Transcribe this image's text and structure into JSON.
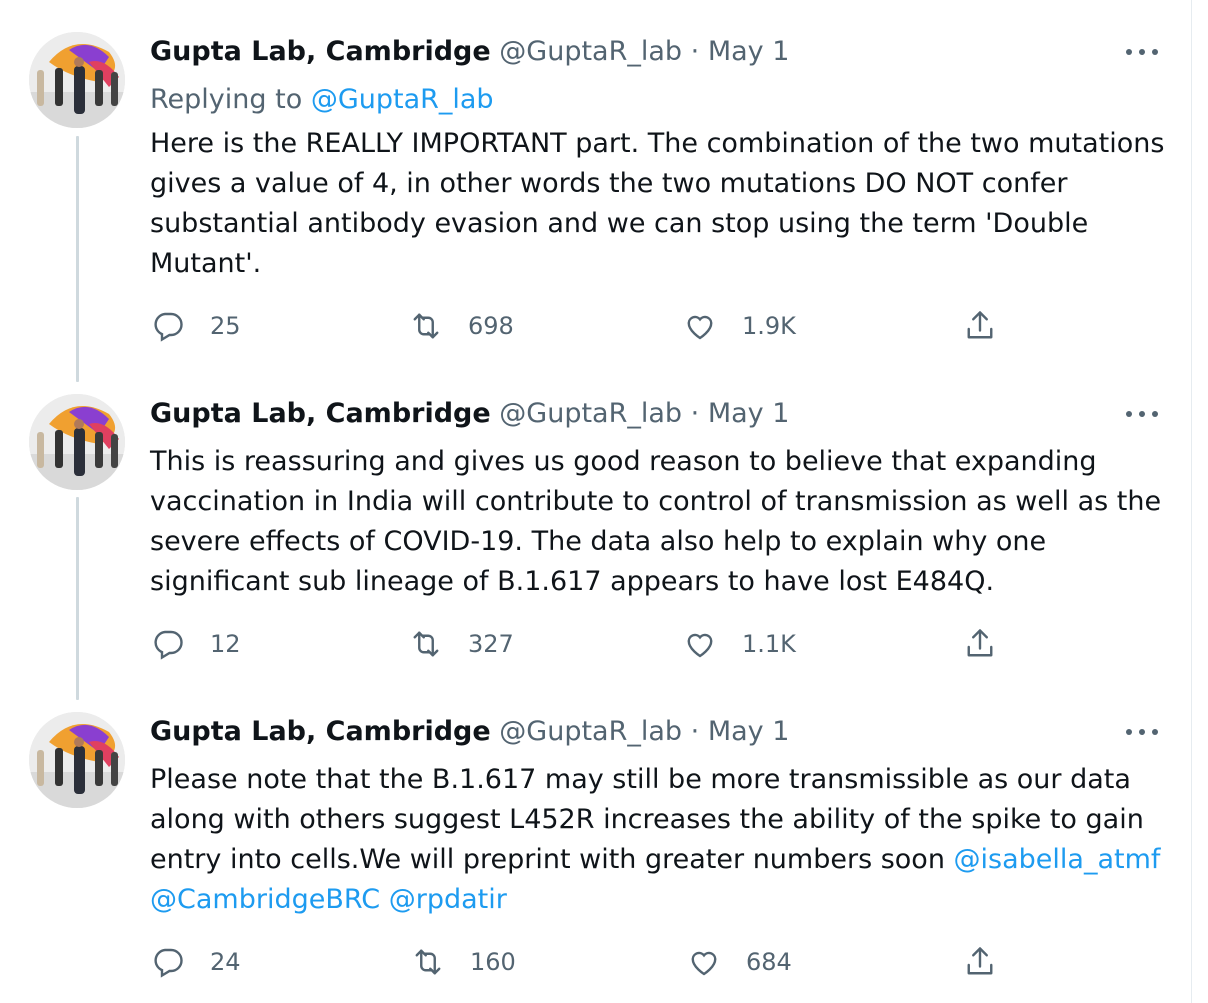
{
  "tweets": [
    {
      "author": "Gupta Lab, Cambridge",
      "handle": "@GuptaR_lab",
      "date": "May 1",
      "replying_prefix": "Replying to",
      "replying_handle": "@GuptaR_lab",
      "lines": [
        "Here is the REALLY IMPORTANT part. The combination of the two mutations",
        "gives a value of 4, in other words the two mutations DO NOT confer",
        "substantial antibody evasion and we can stop using the term 'Double",
        "Mutant'."
      ],
      "replies": "25",
      "retweets": "698",
      "likes": "1.9K"
    },
    {
      "author": "Gupta Lab, Cambridge",
      "handle": "@GuptaR_lab",
      "date": "May 1",
      "lines": [
        "This is reassuring and gives us good reason to believe that expanding",
        "vaccination in India will contribute to control of transmission as well as the",
        "severe effects of COVID-19. The data also help to explain why one",
        "significant sub lineage of B.1.617 appears to have lost E484Q."
      ],
      "replies": "12",
      "retweets": "327",
      "likes": "1.1K"
    },
    {
      "author": "Gupta Lab, Cambridge",
      "handle": "@GuptaR_lab",
      "date": "May 1",
      "lines": [
        "Please note that the B.1.617 may still be more transmissible as our data",
        "along with others suggest L452R increases the ability of the spike to gain",
        "entry into cells.We will preprint with greater numbers soon"
      ],
      "line3_mention": "@isabella_atmf",
      "line4_mentions": [
        "@CambridgeBRC",
        "@rpdatir"
      ],
      "replies": "24",
      "retweets": "160",
      "likes": "684"
    }
  ],
  "separator": "·",
  "icons": {
    "reply": "reply-icon",
    "retweet": "retweet-icon",
    "like": "heart-icon",
    "share": "share-icon",
    "more": "more-options-icon"
  },
  "colors": {
    "text": "#0f1419",
    "secondary": "#536471",
    "link": "#1d9bf0",
    "thread_line": "#cfd9de"
  }
}
